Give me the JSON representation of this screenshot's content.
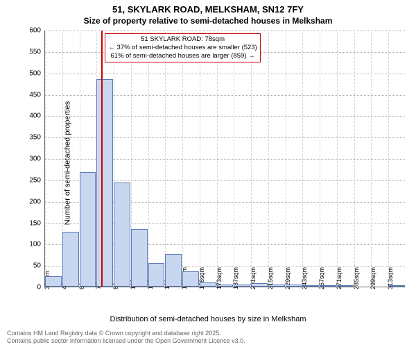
{
  "title": {
    "line1": "51, SKYLARK ROAD, MELKSHAM, SN12 7FY",
    "line2": "Size of property relative to semi-detached houses in Melksham"
  },
  "ylabel": "Number of semi-detached properties",
  "xlabel": "Distribution of semi-detached houses by size in Melksham",
  "footer": {
    "line1": "Contains HM Land Registry data © Crown copyright and database right 2025.",
    "line2": "Contains public sector information licensed under the Open Government Licence v3.0."
  },
  "callout": {
    "line1": "51 SKYLARK ROAD: 78sqm",
    "line2": "← 37% of semi-detached houses are smaller (523)",
    "line3": "61% of semi-detached houses are larger (859) →",
    "border_color": "#cc0000"
  },
  "chart": {
    "type": "histogram",
    "ylim": [
      0,
      600
    ],
    "ytick_step": 50,
    "bar_fill": "#c9d6ef",
    "bar_stroke": "#5b7bb8",
    "grid_color": "#aaaaaa",
    "background_color": "#ffffff",
    "marker_x": 78,
    "marker_color": "#cc0000",
    "marker_width": 2,
    "x_bin_width": 14,
    "x_start": 32,
    "categories": [
      "32sqm",
      "46sqm",
      "60sqm",
      "74sqm",
      "88sqm",
      "102sqm",
      "116sqm",
      "130sqm",
      "144sqm",
      "158sqm",
      "173sqm",
      "187sqm",
      "201sqm",
      "215sqm",
      "229sqm",
      "243sqm",
      "257sqm",
      "271sqm",
      "285sqm",
      "299sqm",
      "313sqm"
    ],
    "values": [
      25,
      128,
      268,
      485,
      243,
      135,
      55,
      77,
      35,
      10,
      5,
      5,
      8,
      5,
      5,
      3,
      3,
      3,
      0,
      0,
      2
    ],
    "title_fontsize": 13,
    "label_fontsize": 11,
    "tick_fontsize": 10
  }
}
